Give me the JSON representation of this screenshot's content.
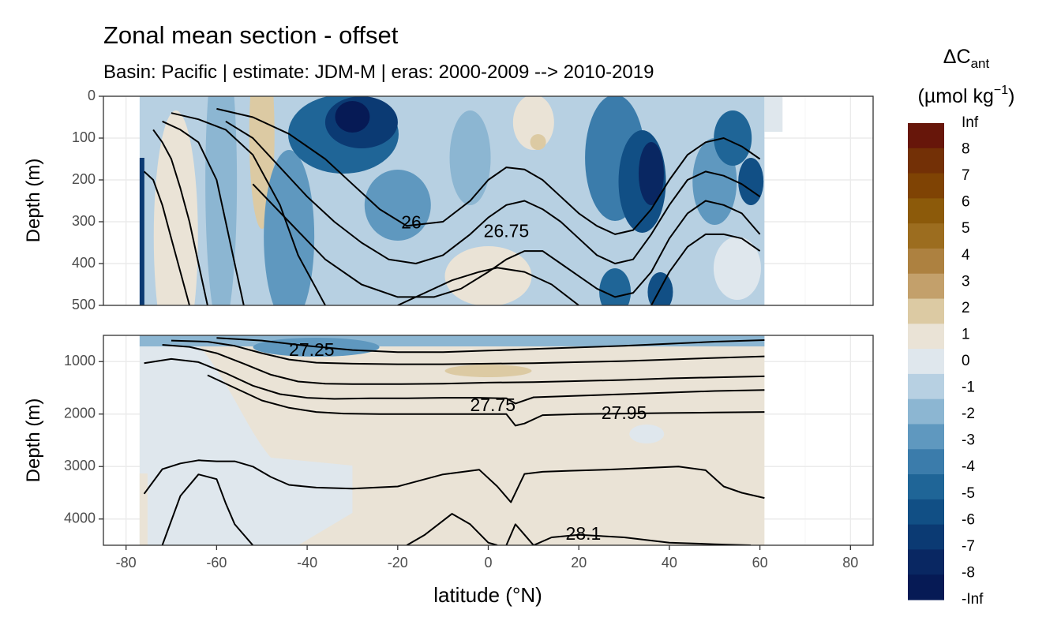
{
  "title": "Zonal mean section - offset",
  "subtitle": "Basin: Pacific | estimate: JDM-M | eras: 2000-2009 --> 2010-2019",
  "chart_data": {
    "type": "contour",
    "xlabel": "latitude (°N)",
    "ylabel": "Depth (m)",
    "xlim": [
      -85,
      85
    ],
    "xticks": [
      -80,
      -60,
      -40,
      -20,
      0,
      20,
      40,
      60,
      80
    ],
    "xtick_labels": [
      "-80",
      "-60",
      "-40",
      "-20",
      "0",
      "20",
      "40",
      "60",
      "80"
    ],
    "panels": [
      {
        "name": "upper",
        "ylim": [
          0,
          500
        ],
        "yticks": [
          0,
          100,
          200,
          300,
          400,
          500
        ],
        "ytick_labels": [
          "0",
          "100",
          "200",
          "300",
          "400",
          "500"
        ],
        "contour_labels": [
          {
            "text": "26",
            "lat": -17,
            "depth": 305
          },
          {
            "text": "26.75",
            "lat": 4,
            "depth": 325
          }
        ]
      },
      {
        "name": "lower",
        "ylim": [
          500,
          4500
        ],
        "yticks": [
          1000,
          2000,
          3000,
          4000
        ],
        "ytick_labels": [
          "1000",
          "2000",
          "3000",
          "4000"
        ],
        "contour_labels": [
          {
            "text": "27.25",
            "lat": -39,
            "depth": 800
          },
          {
            "text": "27.75",
            "lat": 1,
            "depth": 1850
          },
          {
            "text": "27.95",
            "lat": 30,
            "depth": 2000
          },
          {
            "text": "28.1",
            "lat": 21,
            "depth": 4300
          }
        ]
      }
    ],
    "isopycnals_upper": [
      {
        "lat": [
          -76,
          -74,
          -72,
          -70,
          -68,
          -66
        ],
        "depth": [
          180,
          200,
          260,
          340,
          420,
          500
        ]
      },
      {
        "lat": [
          -74,
          -72,
          -70,
          -68,
          -66,
          -64,
          -62
        ],
        "depth": [
          80,
          110,
          150,
          220,
          300,
          400,
          500
        ]
      },
      {
        "lat": [
          -72,
          -68,
          -64,
          -60,
          -58,
          -56,
          -54
        ],
        "depth": [
          60,
          80,
          110,
          200,
          300,
          400,
          500
        ]
      },
      {
        "lat": [
          -70,
          -64,
          -58,
          -52,
          -46,
          -42,
          -38,
          -36
        ],
        "depth": [
          40,
          55,
          80,
          140,
          260,
          380,
          460,
          500
        ]
      },
      {
        "lat": [
          -60,
          -52,
          -44,
          -36,
          -30,
          -24,
          -18,
          -10,
          -4,
          0,
          4,
          8,
          12,
          16,
          20,
          24,
          28,
          32,
          36,
          40,
          44,
          48,
          52,
          56,
          60
        ],
        "depth": [
          30,
          50,
          90,
          150,
          210,
          270,
          310,
          300,
          250,
          200,
          170,
          175,
          200,
          240,
          280,
          310,
          330,
          320,
          270,
          200,
          140,
          110,
          100,
          120,
          150
        ]
      },
      {
        "lat": [
          -58,
          -52,
          -46,
          -40,
          -34,
          -28,
          -22,
          -16,
          -10,
          -4,
          0,
          4,
          8,
          12,
          16,
          20,
          24,
          28,
          32,
          36,
          40,
          44,
          48,
          52,
          56,
          60
        ],
        "depth": [
          60,
          100,
          170,
          240,
          300,
          350,
          390,
          400,
          380,
          330,
          290,
          260,
          250,
          270,
          300,
          340,
          380,
          400,
          390,
          330,
          260,
          200,
          180,
          190,
          210,
          240
        ]
      },
      {
        "lat": [
          -52,
          -44,
          -36,
          -28,
          -20,
          -12,
          -6,
          0,
          4,
          8,
          12,
          16,
          20,
          24,
          28,
          32,
          36,
          40,
          44,
          48,
          52,
          56,
          60
        ],
        "depth": [
          210,
          300,
          390,
          450,
          480,
          480,
          460,
          420,
          390,
          370,
          370,
          400,
          430,
          460,
          480,
          470,
          420,
          340,
          280,
          250,
          260,
          280,
          330
        ]
      },
      {
        "lat": [
          -20,
          -14,
          -8,
          -2,
          2,
          8,
          14,
          20
        ],
        "depth": [
          500,
          470,
          440,
          420,
          410,
          420,
          450,
          500
        ]
      },
      {
        "lat": [
          36,
          40,
          44,
          48,
          52,
          56,
          60
        ],
        "depth": [
          500,
          420,
          360,
          330,
          330,
          340,
          370
        ]
      }
    ],
    "isopycnals_lower": [
      {
        "lat": [
          -60,
          -50,
          -40,
          -30,
          -20,
          -10,
          0,
          10,
          20,
          30,
          40,
          50,
          61
        ],
        "depth": [
          550,
          600,
          700,
          780,
          820,
          820,
          790,
          760,
          730,
          700,
          660,
          620,
          590
        ]
      },
      {
        "lat": [
          -70,
          -62,
          -56,
          -50,
          -44,
          -38,
          -30,
          -20,
          -10,
          0,
          10,
          20,
          30,
          40,
          50,
          61
        ],
        "depth": [
          600,
          620,
          700,
          840,
          960,
          1020,
          1040,
          1050,
          1050,
          1040,
          1030,
          1010,
          990,
          960,
          930,
          900
        ]
      },
      {
        "lat": [
          -72,
          -66,
          -60,
          -54,
          -48,
          -42,
          -36,
          -30,
          -20,
          -10,
          0,
          10,
          20,
          30,
          40,
          50,
          61
        ],
        "depth": [
          680,
          720,
          840,
          1040,
          1250,
          1380,
          1420,
          1430,
          1430,
          1420,
          1400,
          1390,
          1370,
          1350,
          1320,
          1300,
          1280
        ]
      },
      {
        "lat": [
          -76,
          -70,
          -64,
          -58,
          -52,
          -46,
          -40,
          -34,
          -26,
          -18,
          -10,
          -2,
          4,
          6,
          10,
          20,
          30,
          40,
          50,
          61
        ],
        "depth": [
          1030,
          950,
          1010,
          1220,
          1460,
          1620,
          1690,
          1710,
          1700,
          1700,
          1690,
          1690,
          1700,
          1800,
          1680,
          1650,
          1620,
          1590,
          1560,
          1540
        ]
      },
      {
        "lat": [
          -62,
          -56,
          -50,
          -44,
          -38,
          -32,
          -24,
          -16,
          -8,
          0,
          4,
          6,
          8,
          12,
          20,
          30,
          40,
          50,
          61
        ],
        "depth": [
          1260,
          1500,
          1740,
          1880,
          1960,
          1990,
          2000,
          2000,
          2000,
          2000,
          2000,
          2220,
          2180,
          2020,
          2000,
          1990,
          1980,
          1970,
          1960
        ]
      },
      {
        "lat": [
          -76,
          -72,
          -68,
          -64,
          -60,
          -56,
          -52,
          -48,
          -44,
          -38,
          -30,
          -20,
          -10,
          -2,
          2,
          5,
          8,
          12,
          18,
          26,
          34,
          42,
          48,
          52,
          56,
          61
        ],
        "depth": [
          3520,
          3050,
          2940,
          2880,
          2900,
          2900,
          3000,
          3200,
          3350,
          3400,
          3420,
          3380,
          3150,
          3060,
          3380,
          3680,
          3140,
          3100,
          3080,
          3060,
          3030,
          3000,
          3070,
          3380,
          3500,
          3600
        ]
      },
      {
        "lat": [
          -72,
          -68,
          -64,
          -60,
          -58,
          -56,
          -52
        ],
        "depth": [
          4500,
          3560,
          3150,
          3240,
          3700,
          4100,
          4500
        ]
      },
      {
        "lat": [
          -18,
          -14,
          -8,
          -4,
          0,
          2
        ],
        "depth": [
          4500,
          4300,
          3900,
          4100,
          4450,
          4500
        ]
      },
      {
        "lat": [
          4,
          6,
          8,
          10,
          14,
          20,
          30,
          40,
          50,
          58
        ],
        "depth": [
          4500,
          4100,
          4300,
          4500,
          4350,
          4300,
          4350,
          4450,
          4480,
          4500
        ]
      }
    ],
    "colorbar": {
      "title": "ΔC",
      "title_sub": "ant",
      "units_main": "(µmol kg",
      "units_exp": "−1",
      "units_close": ")",
      "labels": [
        "Inf",
        "8",
        "7",
        "6",
        "5",
        "4",
        "3",
        "2",
        "1",
        "0",
        "-1",
        "-2",
        "-3",
        "-4",
        "-5",
        "-6",
        "-7",
        "-8",
        "-Inf"
      ],
      "colors": [
        "#67160a",
        "#733006",
        "#7f4304",
        "#8c5a0a",
        "#9c6d1f",
        "#ad8140",
        "#c3a06b",
        "#dccaa3",
        "#eae3d6",
        "#dfe7ed",
        "#b7d0e2",
        "#8cb6d2",
        "#5f98bf",
        "#3b7cab",
        "#1f6597",
        "#114f85",
        "#0b3a73",
        "#092762",
        "#061a55"
      ]
    }
  }
}
